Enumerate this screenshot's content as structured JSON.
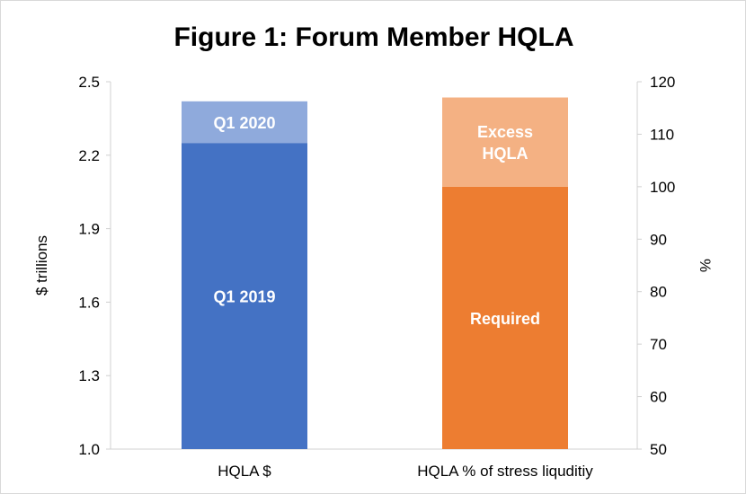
{
  "chart_data": {
    "type": "bar",
    "title": "Figure 1: Forum Member HQLA",
    "categories": [
      "HQLA $",
      "HQLA % of stress liquditiy"
    ],
    "left_axis": {
      "label": "$ trillions",
      "ylim": [
        1.0,
        2.5
      ],
      "ticks": [
        "1.0",
        "1.3",
        "1.6",
        "1.9",
        "2.2",
        "2.5"
      ]
    },
    "right_axis": {
      "label": "%",
      "ylim": [
        50,
        120
      ],
      "ticks": [
        "50",
        "60",
        "70",
        "80",
        "90",
        "100",
        "110",
        "120"
      ]
    },
    "stacks": [
      {
        "category": "HQLA $",
        "axis": "left",
        "segments": [
          {
            "label": "Q1 2019",
            "value": 2.25,
            "color": "#4472c4"
          },
          {
            "label": "Q1 2020",
            "value": 0.17,
            "color": "#8faadc"
          }
        ]
      },
      {
        "category": "HQLA % of stress liquditiy",
        "axis": "right",
        "segments": [
          {
            "label": "Required",
            "value": 100,
            "color": "#ed7d31"
          },
          {
            "label": "Excess HQLA",
            "value": 17,
            "color": "#f4b183"
          }
        ]
      }
    ],
    "grid": false,
    "legend": "none"
  }
}
